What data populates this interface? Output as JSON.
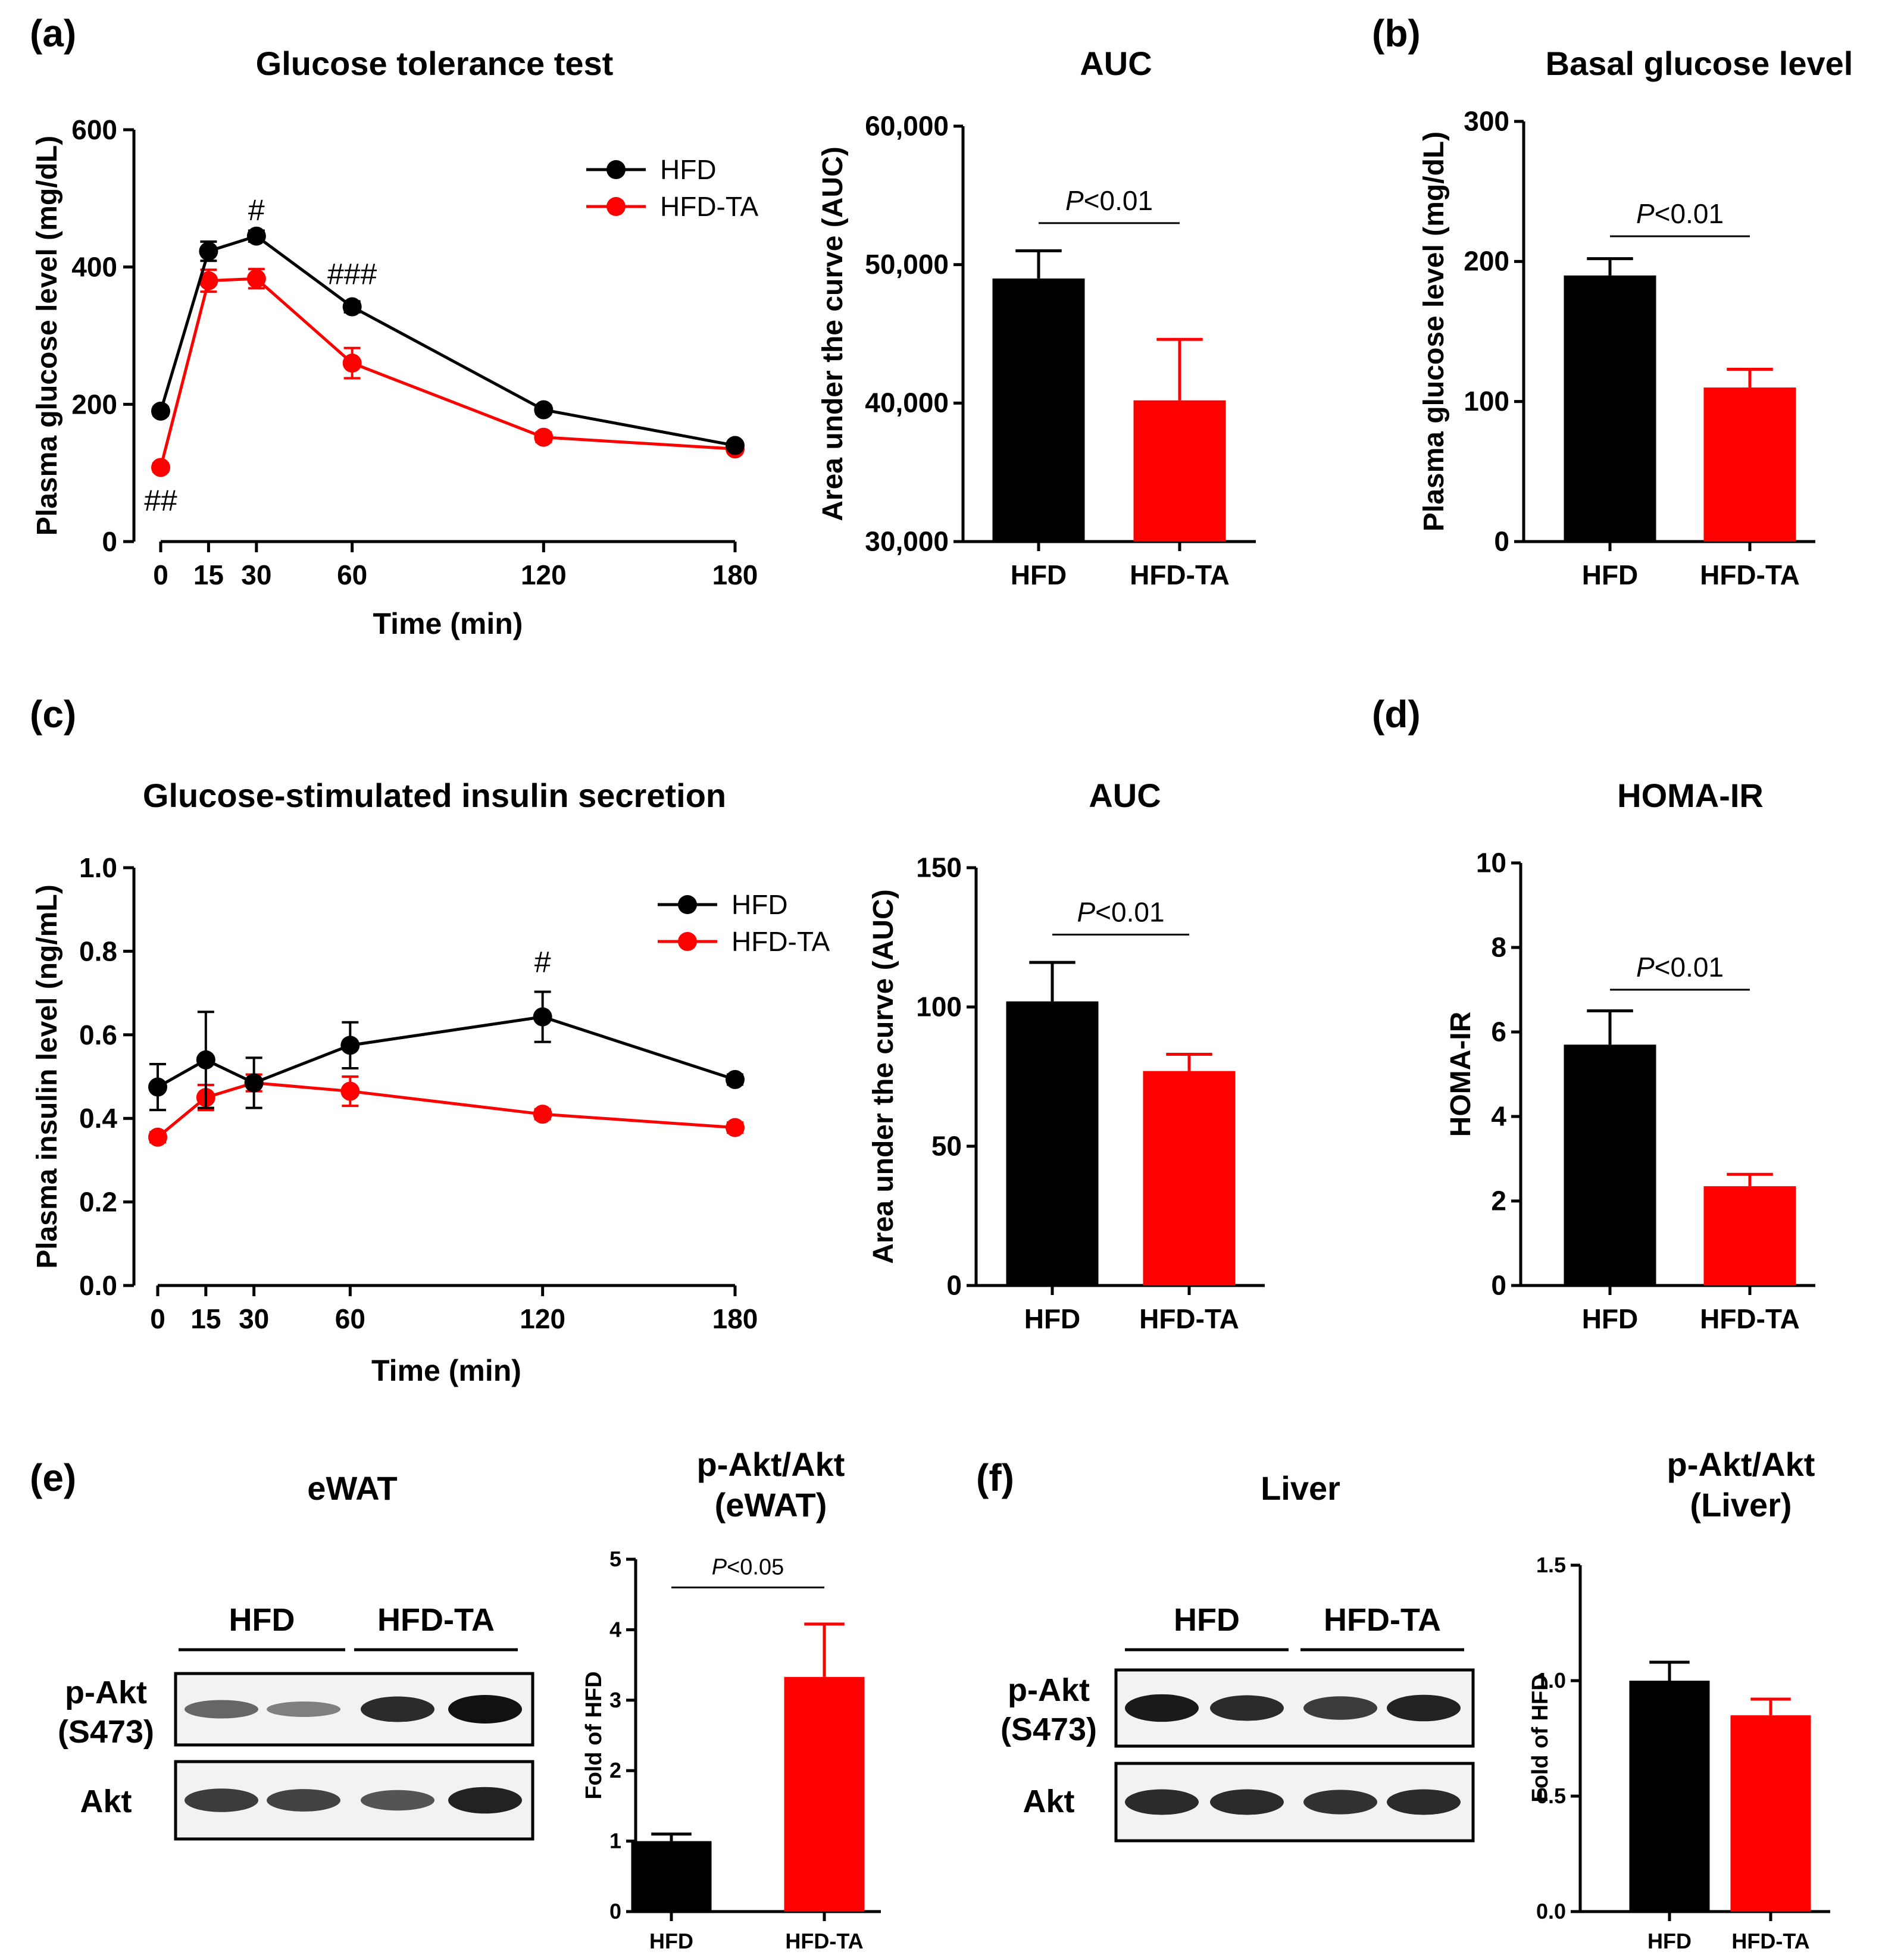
{
  "colors": {
    "hfd": "#000000",
    "hfd_ta": "#ff0000"
  },
  "panel_labels": {
    "a": "(a)",
    "b": "(b)",
    "c": "(c)",
    "d": "(d)",
    "e": "(e)",
    "f": "(f)"
  },
  "chart_data": [
    {
      "id": "gtt",
      "type": "line",
      "title": "Glucose tolerance test",
      "xlabel": "Time (min)",
      "ylabel": "Plasma glucose level (mg/dL)",
      "x": [
        0,
        15,
        30,
        60,
        120,
        180
      ],
      "xlim": [
        0,
        180
      ],
      "ylim": [
        0,
        600
      ],
      "yticks": [
        0,
        200,
        400,
        600
      ],
      "ytick_labels": [
        "0",
        "200",
        "400",
        "600"
      ],
      "series": [
        {
          "name": "HFD",
          "color": "#000000",
          "values": [
            190,
            423,
            445,
            342,
            192,
            140
          ],
          "err": [
            6,
            14,
            8,
            8,
            6,
            5
          ]
        },
        {
          "name": "HFD-TA",
          "color": "#ff0000",
          "values": [
            108,
            380,
            383,
            260,
            152,
            135
          ],
          "err": [
            6,
            16,
            14,
            22,
            7,
            5
          ]
        }
      ],
      "annotations": [
        {
          "x": 30,
          "y": 468,
          "text": "#"
        },
        {
          "x": 60,
          "y": 375,
          "text": "###"
        },
        {
          "x": 0,
          "y": 45,
          "text": "##"
        }
      ],
      "legend": "top-right"
    },
    {
      "id": "gtt_auc",
      "type": "bar",
      "title": "AUC",
      "ylabel": "Area under the curve (AUC)",
      "categories": [
        "HFD",
        "HFD-TA"
      ],
      "values": [
        49000,
        40200
      ],
      "err": [
        2000,
        4400
      ],
      "colors": [
        "#000000",
        "#ff0000"
      ],
      "ylim": [
        30000,
        60000
      ],
      "yticks": [
        30000,
        40000,
        50000,
        60000
      ],
      "ytick_labels": [
        "30,000",
        "40,000",
        "50,000",
        "60,000"
      ],
      "sig_label": "P<0.01",
      "sig_y": 53000
    },
    {
      "id": "basal",
      "type": "bar",
      "title": "Basal glucose level",
      "ylabel": "Plasma glucose level (mg/dL)",
      "categories": [
        "HFD",
        "HFD-TA"
      ],
      "values": [
        190,
        110
      ],
      "err": [
        12,
        13
      ],
      "colors": [
        "#000000",
        "#ff0000"
      ],
      "ylim": [
        0,
        300
      ],
      "yticks": [
        0,
        100,
        200,
        300
      ],
      "ytick_labels": [
        "0",
        "100",
        "200",
        "300"
      ],
      "sig_label": "P<0.01",
      "sig_y": 218
    },
    {
      "id": "gsis",
      "type": "line",
      "title": "Glucose-stimulated insulin secretion",
      "xlabel": "Time (min)",
      "ylabel": "Plasma insulin level (ng/mL)",
      "x": [
        0,
        15,
        30,
        60,
        120,
        180
      ],
      "xlim": [
        0,
        180
      ],
      "ylim": [
        0,
        1.0
      ],
      "yticks": [
        0,
        0.2,
        0.4,
        0.6,
        0.8,
        1.0
      ],
      "ytick_labels": [
        "0.0",
        "0.2",
        "0.4",
        "0.6",
        "0.8",
        "1.0"
      ],
      "series": [
        {
          "name": "HFD",
          "color": "#000000",
          "values": [
            0.475,
            0.54,
            0.485,
            0.575,
            0.643,
            0.493
          ],
          "err": [
            0.055,
            0.115,
            0.06,
            0.055,
            0.06,
            0.012
          ]
        },
        {
          "name": "HFD-TA",
          "color": "#ff0000",
          "values": [
            0.355,
            0.45,
            0.485,
            0.465,
            0.41,
            0.378
          ],
          "err": [
            0.012,
            0.03,
            0.02,
            0.035,
            0.012,
            0.012
          ]
        }
      ],
      "annotations": [
        {
          "x": 120,
          "y": 0.75,
          "text": "#"
        }
      ],
      "legend": "top-right"
    },
    {
      "id": "gsis_auc",
      "type": "bar",
      "title": "AUC",
      "ylabel": "Area under the curve (AUC)",
      "categories": [
        "HFD",
        "HFD-TA"
      ],
      "values": [
        102,
        77
      ],
      "err": [
        14,
        6
      ],
      "colors": [
        "#000000",
        "#ff0000"
      ],
      "ylim": [
        0,
        150
      ],
      "yticks": [
        0,
        50,
        100,
        150
      ],
      "ytick_labels": [
        "0",
        "50",
        "100",
        "150"
      ],
      "sig_label": "P<0.01",
      "sig_y": 126
    },
    {
      "id": "homa",
      "type": "bar",
      "title": "HOMA-IR",
      "ylabel": "HOMA-IR",
      "categories": [
        "HFD",
        "HFD-TA"
      ],
      "values": [
        5.7,
        2.35
      ],
      "err": [
        0.8,
        0.28
      ],
      "colors": [
        "#000000",
        "#ff0000"
      ],
      "ylim": [
        0,
        10
      ],
      "yticks": [
        0,
        2,
        4,
        6,
        8,
        10
      ],
      "ytick_labels": [
        "0",
        "2",
        "4",
        "6",
        "8",
        "10"
      ],
      "sig_label": "P<0.01",
      "sig_y": 7.0
    },
    {
      "id": "ewat_bar",
      "type": "bar",
      "title_lines": [
        "p-Akt/Akt",
        "(eWAT)"
      ],
      "ylabel": "Fold of HFD",
      "categories": [
        "HFD",
        "HFD-TA"
      ],
      "values": [
        1.0,
        3.33
      ],
      "err": [
        0.1,
        0.75
      ],
      "colors": [
        "#000000",
        "#ff0000"
      ],
      "ylim": [
        0,
        5
      ],
      "yticks": [
        0,
        1,
        2,
        3,
        4,
        5
      ],
      "ytick_labels": [
        "0",
        "1",
        "2",
        "3",
        "4",
        "5"
      ],
      "sig_label": "P<0.05",
      "sig_y": 4.6
    },
    {
      "id": "liver_bar",
      "type": "bar",
      "title_lines": [
        "p-Akt/Akt",
        "(Liver)"
      ],
      "ylabel": "Fold of HFD",
      "categories": [
        "HFD",
        "HFD-TA"
      ],
      "values": [
        1.0,
        0.85
      ],
      "err": [
        0.08,
        0.07
      ],
      "colors": [
        "#000000",
        "#ff0000"
      ],
      "ylim": [
        0,
        1.5
      ],
      "yticks": [
        0,
        0.5,
        1.0,
        1.5
      ],
      "ytick_labels": [
        "0.0",
        "0.5",
        "1.0",
        "1.5"
      ]
    }
  ],
  "blots": [
    {
      "id": "ewat",
      "title": "eWAT",
      "groups": [
        "HFD",
        "HFD-TA"
      ],
      "row_labels": [
        [
          "p-Akt",
          "(S473)"
        ],
        [
          "Akt"
        ]
      ],
      "intensity": [
        [
          0.5,
          0.35,
          0.85,
          1.0
        ],
        [
          0.75,
          0.7,
          0.6,
          0.9
        ]
      ]
    },
    {
      "id": "liver",
      "title": "Liver",
      "groups": [
        "HFD",
        "HFD-TA"
      ],
      "row_labels": [
        [
          "p-Akt",
          "(S473)"
        ],
        [
          "Akt"
        ]
      ],
      "intensity": [
        [
          0.95,
          0.85,
          0.75,
          0.9
        ],
        [
          0.85,
          0.85,
          0.8,
          0.85
        ]
      ]
    }
  ]
}
